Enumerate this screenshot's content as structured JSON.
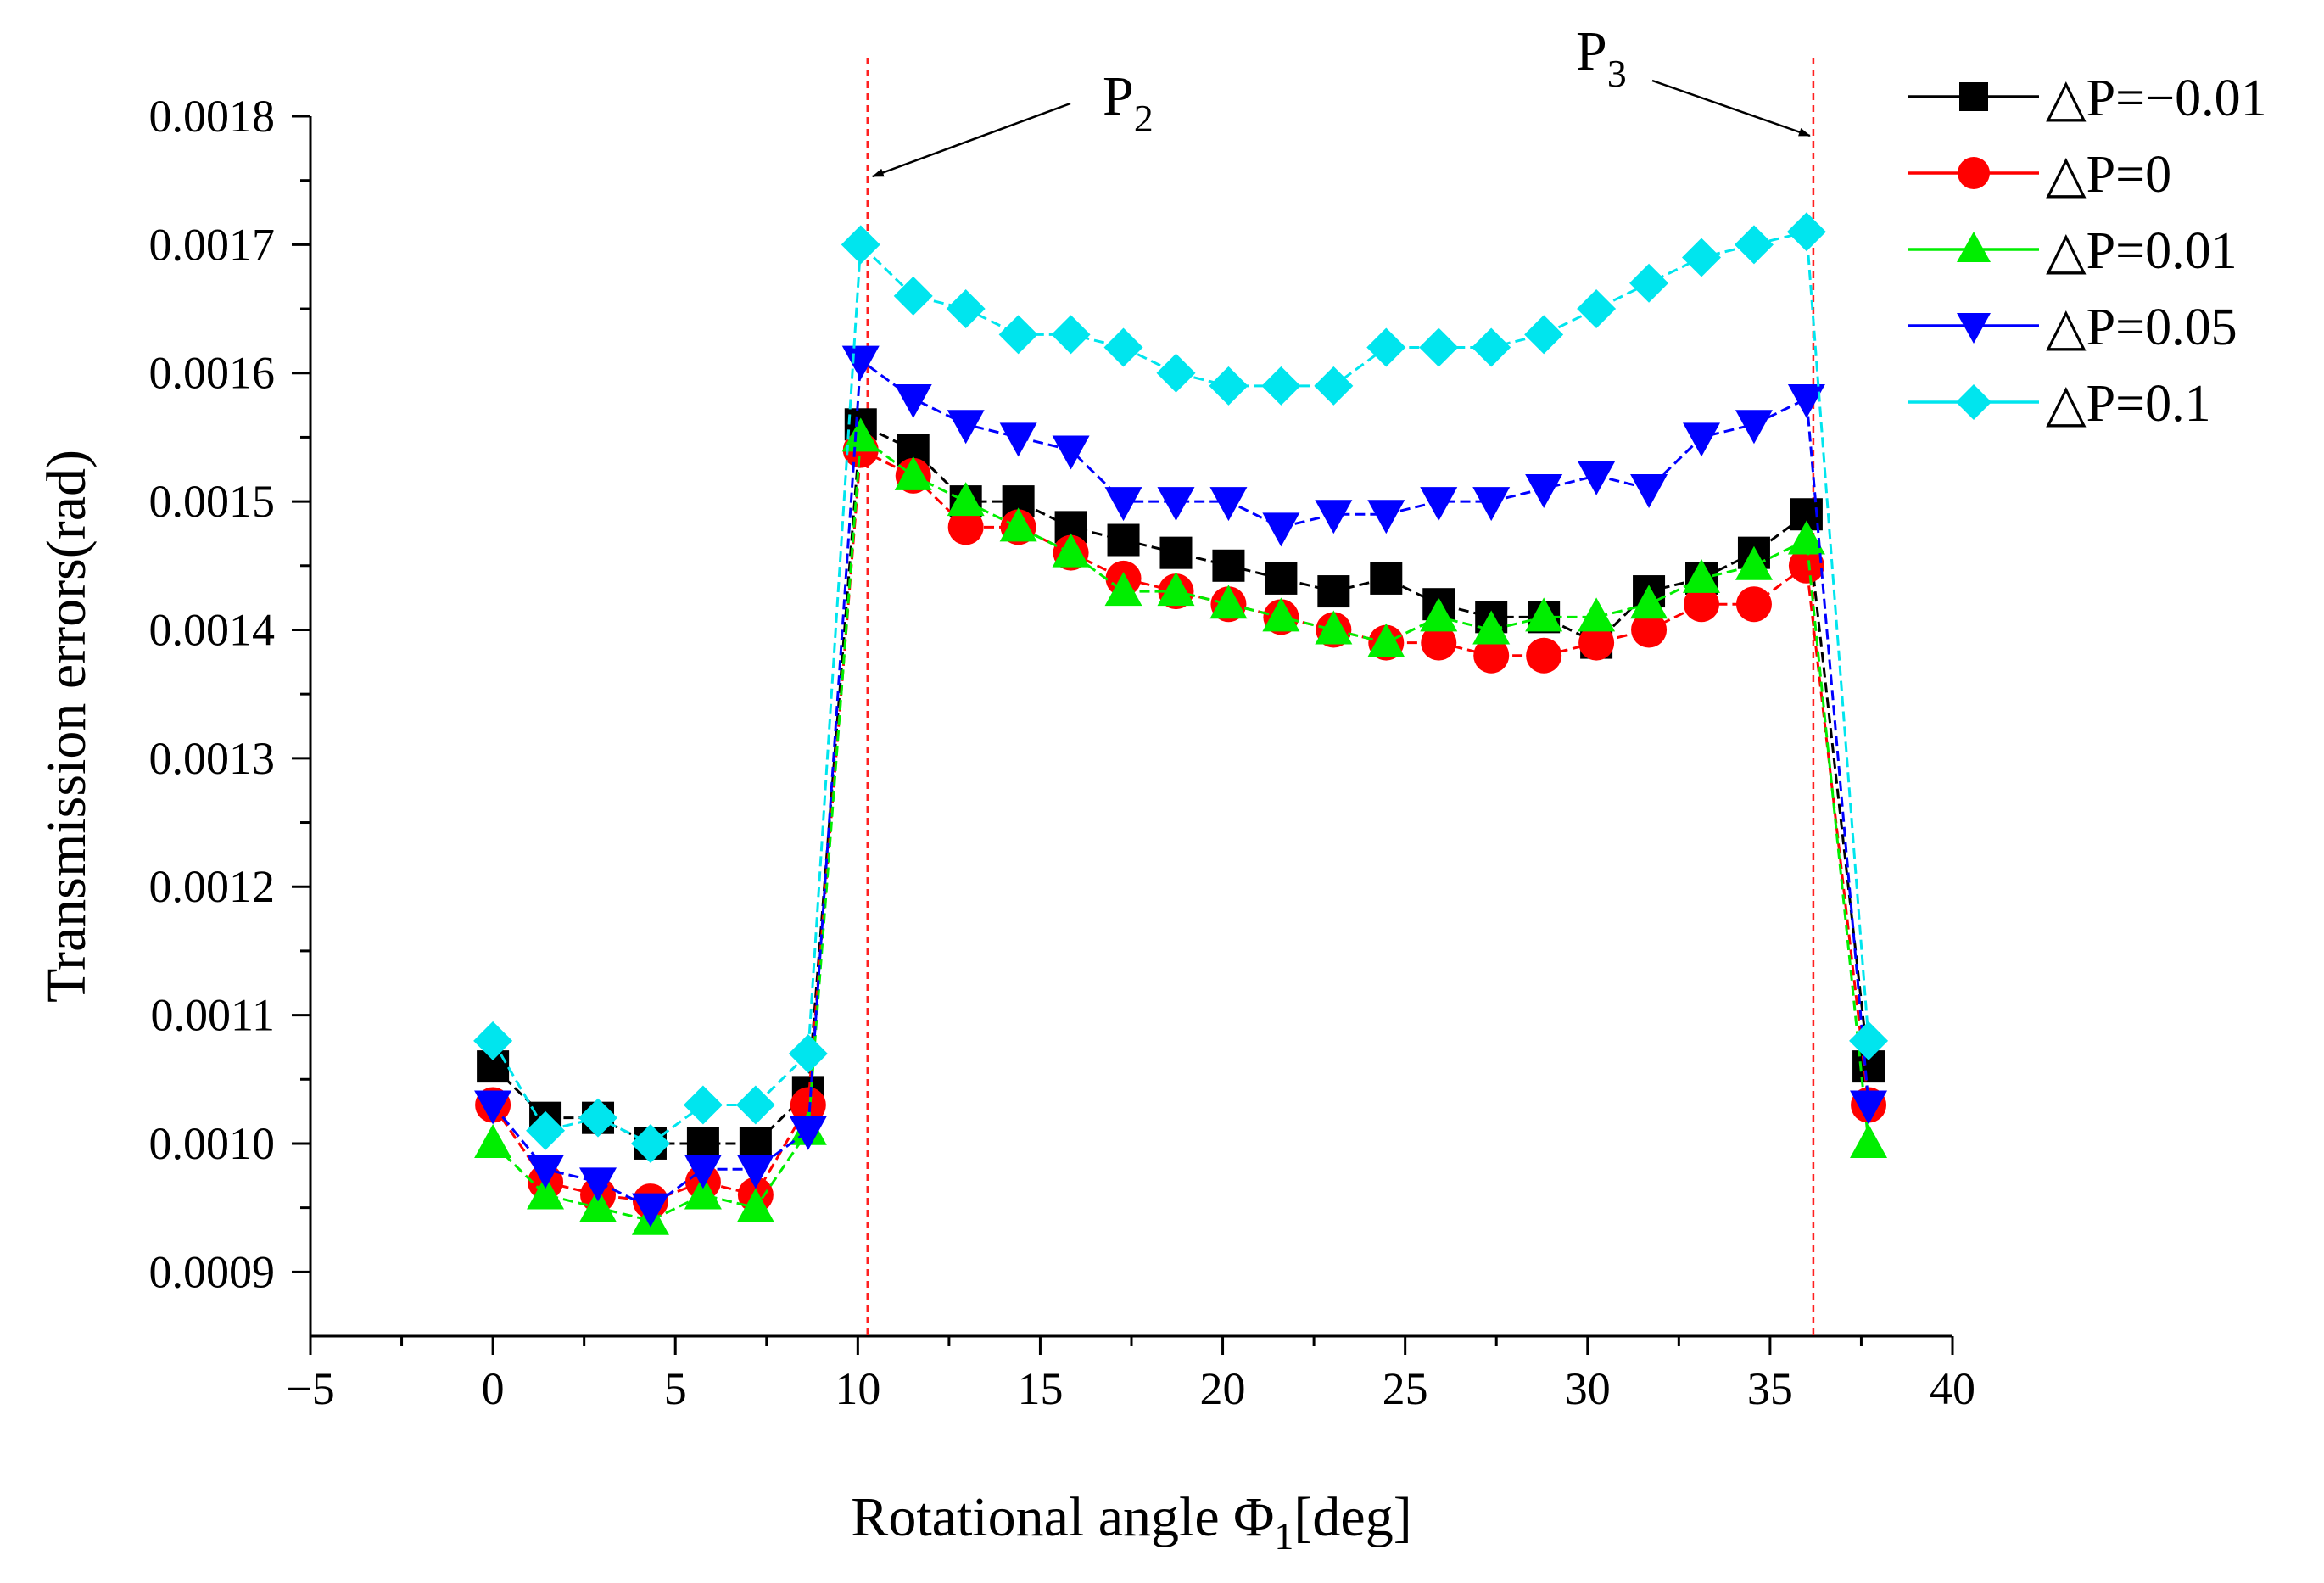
{
  "chart_data": {
    "type": "line",
    "title": "",
    "xlabel": "Rotational angle Φ",
    "xlabel_sub": "1",
    "xlabel_unit": "[deg]",
    "ylabel": "Transmission errors(rad)",
    "xlim": [
      -5,
      40
    ],
    "ylim": [
      0.00085,
      0.0018
    ],
    "x_ticks": [
      -5,
      0,
      5,
      10,
      15,
      20,
      25,
      30,
      35,
      40
    ],
    "x_tick_labels": [
      "−5",
      "0",
      "5",
      "10",
      "15",
      "20",
      "25",
      "30",
      "35",
      "40"
    ],
    "y_ticks": [
      0.0009,
      0.001,
      0.0011,
      0.0012,
      0.0013,
      0.0014,
      0.0015,
      0.0016,
      0.0017,
      0.0018
    ],
    "y_tick_labels": [
      "0.0009",
      "0.0010",
      "0.0011",
      "0.0012",
      "0.0013",
      "0.0014",
      "0.0015",
      "0.0016",
      "0.0017",
      "0.0018"
    ],
    "x": [
      0,
      1.44,
      2.88,
      4.32,
      5.76,
      7.2,
      8.64,
      10.08,
      11.52,
      12.96,
      14.4,
      15.84,
      17.28,
      18.72,
      20.16,
      21.6,
      23.04,
      24.48,
      25.92,
      27.36,
      28.8,
      30.24,
      31.68,
      33.12,
      34.56,
      36.0,
      37.7
    ],
    "series": [
      {
        "name": "△P=−0.01",
        "color": "#000000",
        "marker": "square",
        "dash": "dashed",
        "values": [
          0.00106,
          0.00102,
          0.00102,
          0.001,
          0.001,
          0.001,
          0.00104,
          0.00156,
          0.00154,
          0.0015,
          0.0015,
          0.00148,
          0.00147,
          0.00146,
          0.00145,
          0.00144,
          0.00143,
          0.00144,
          0.00142,
          0.00141,
          0.00141,
          0.00139,
          0.00143,
          0.00144,
          0.00146,
          0.00149,
          0.00106
        ]
      },
      {
        "name": "△P=0",
        "color": "#ff0000",
        "marker": "circle",
        "dash": "dashed",
        "values": [
          0.00103,
          0.00097,
          0.00096,
          0.000955,
          0.00097,
          0.00096,
          0.00103,
          0.00154,
          0.00152,
          0.00148,
          0.00148,
          0.00146,
          0.00144,
          0.00143,
          0.00142,
          0.00141,
          0.0014,
          0.00139,
          0.00139,
          0.00138,
          0.00138,
          0.00139,
          0.0014,
          0.00142,
          0.00142,
          0.00145,
          0.00103
        ]
      },
      {
        "name": "△P=0.01",
        "color": "#00ee00",
        "marker": "triangle-up",
        "dash": "dashed",
        "values": [
          0.001,
          0.00096,
          0.00095,
          0.00094,
          0.00096,
          0.00095,
          0.00101,
          0.00155,
          0.00152,
          0.0015,
          0.00148,
          0.00146,
          0.00143,
          0.00143,
          0.00142,
          0.00141,
          0.0014,
          0.00139,
          0.00141,
          0.0014,
          0.00141,
          0.00141,
          0.00142,
          0.00144,
          0.00145,
          0.00147,
          0.001
        ]
      },
      {
        "name": "△P=0.05",
        "color": "#0000ff",
        "marker": "triangle-down",
        "dash": "dashed",
        "values": [
          0.00103,
          0.00098,
          0.00097,
          0.00095,
          0.00098,
          0.00098,
          0.00101,
          0.00161,
          0.00158,
          0.00156,
          0.00155,
          0.00154,
          0.0015,
          0.0015,
          0.0015,
          0.00148,
          0.00149,
          0.00149,
          0.0015,
          0.0015,
          0.00151,
          0.00152,
          0.00151,
          0.00155,
          0.00156,
          0.00158,
          0.00103
        ]
      },
      {
        "name": "△P=0.1",
        "color": "#00e5ee",
        "marker": "diamond",
        "dash": "dashed",
        "values": [
          0.00108,
          0.00101,
          0.00102,
          0.001,
          0.00103,
          0.00103,
          0.00107,
          0.0017,
          0.00166,
          0.00165,
          0.00163,
          0.00163,
          0.00162,
          0.0016,
          0.00159,
          0.00159,
          0.00159,
          0.00162,
          0.00162,
          0.00162,
          0.00163,
          0.00165,
          0.00167,
          0.00169,
          0.0017,
          0.00171,
          0.00108
        ]
      }
    ],
    "vlines": [
      10.08,
      36.0
    ],
    "annotations": [
      {
        "text": "P",
        "sub": "2",
        "points_to_x": 10.08,
        "points_to_y": 0.00176
      },
      {
        "text": "P",
        "sub": "3",
        "points_to_x": 36.0,
        "points_to_y": 0.00176
      }
    ],
    "legend_position": "top-right",
    "grid": false
  }
}
